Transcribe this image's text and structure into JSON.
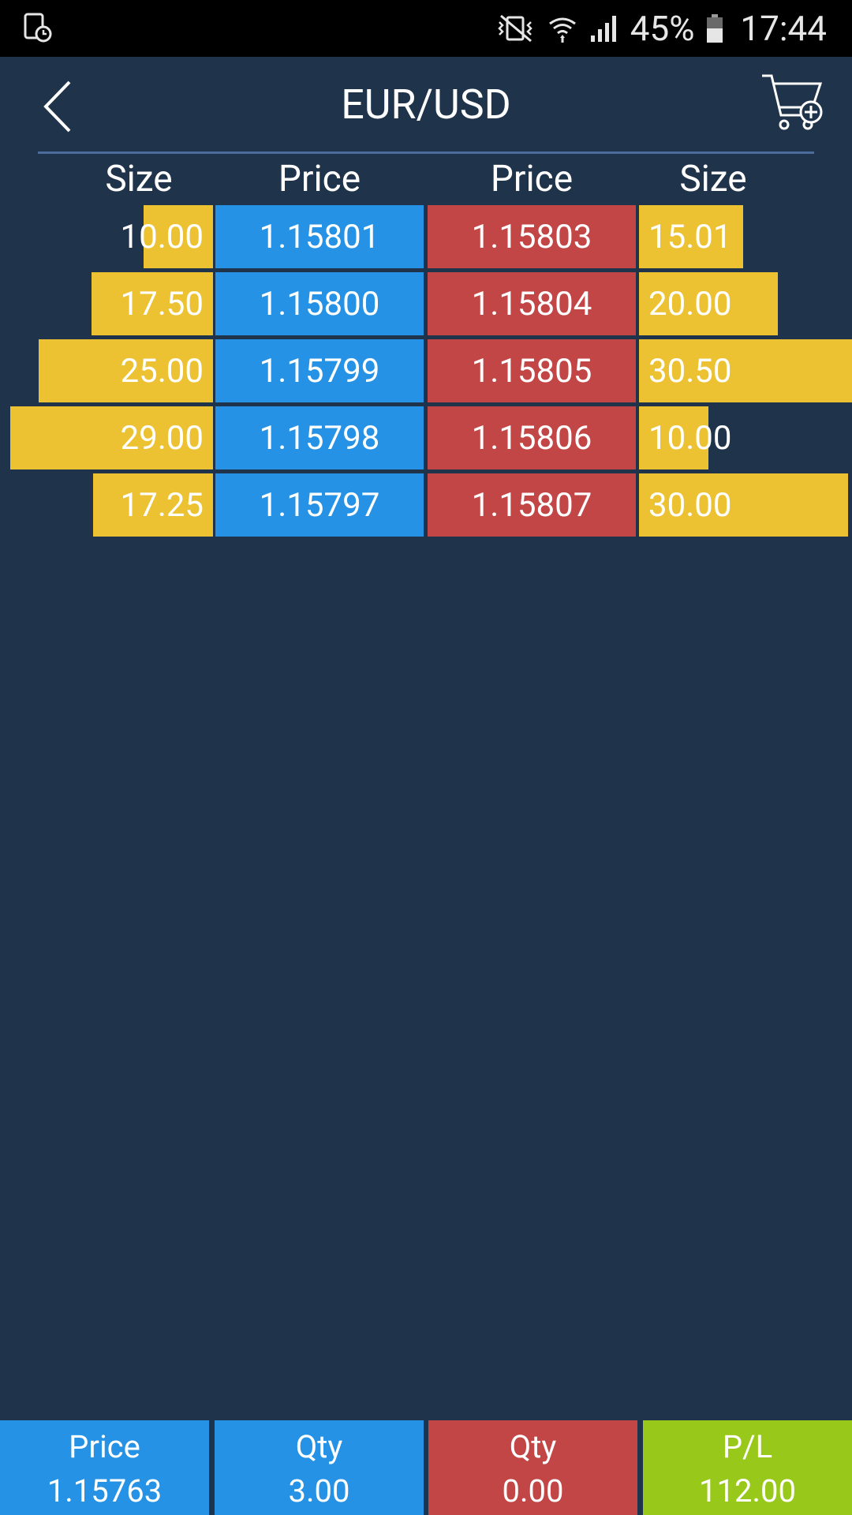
{
  "status_bar": {
    "battery_percent": "45%",
    "time": "17:44",
    "icons": [
      "screen-record-icon",
      "vibrate-mute-icon",
      "wifi-icon",
      "signal-icon",
      "battery-icon"
    ]
  },
  "header": {
    "title": "EUR/USD",
    "back_icon": "chevron-left-icon",
    "cart_icon": "cart-add-icon"
  },
  "table": {
    "headers": [
      "Size",
      "Price",
      "Price",
      "Size"
    ],
    "rows": [
      {
        "bid_size": "10.00",
        "bid_price": "1.15801",
        "ask_price": "1.15803",
        "ask_size": "15.01"
      },
      {
        "bid_size": "17.50",
        "bid_price": "1.15800",
        "ask_price": "1.15804",
        "ask_size": "20.00"
      },
      {
        "bid_size": "25.00",
        "bid_price": "1.15799",
        "ask_price": "1.15805",
        "ask_size": "30.50"
      },
      {
        "bid_size": "29.00",
        "bid_price": "1.15798",
        "ask_price": "1.15806",
        "ask_size": "10.00"
      },
      {
        "bid_size": "17.25",
        "bid_price": "1.15797",
        "ask_price": "1.15807",
        "ask_size": "30.00"
      }
    ]
  },
  "summary": [
    {
      "label": "Price",
      "value": "1.15763",
      "color": "#2592e5"
    },
    {
      "label": "Qty",
      "value": "3.00",
      "color": "#2592e5"
    },
    {
      "label": "Qty",
      "value": "0.00",
      "color": "#c24646"
    },
    {
      "label": "P/L",
      "value": "112.00",
      "color": "#97c81a"
    }
  ],
  "colors": {
    "background": "#1f334b",
    "bid": "#2592e5",
    "ask": "#c24646",
    "size_bar": "#ecc232",
    "profit": "#97c81a"
  }
}
